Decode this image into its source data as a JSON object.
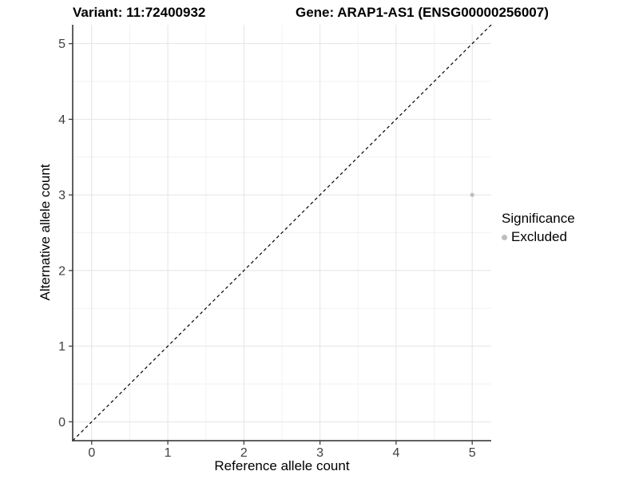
{
  "header": {
    "variant_title": "Variant: 11:72400932",
    "gene_title": "Gene: ARAP1-AS1 (ENSG00000256007)"
  },
  "chart_data": {
    "type": "scatter",
    "title": "",
    "xlabel": "Reference allele count",
    "ylabel": "Alternative allele count",
    "xlim": [
      -0.25,
      5.25
    ],
    "ylim": [
      -0.25,
      5.25
    ],
    "xticks": [
      0,
      1,
      2,
      3,
      4,
      5
    ],
    "yticks": [
      0,
      1,
      2,
      3,
      4,
      5
    ],
    "grid": true,
    "minor_grid": true,
    "identity_line": {
      "style": "dashed",
      "from": [
        -0.25,
        -0.25
      ],
      "to": [
        5.25,
        5.25
      ]
    },
    "series": [
      {
        "name": "Excluded",
        "marker_radius": 2.6,
        "points": [
          {
            "x": 5,
            "y": 3
          }
        ]
      }
    ],
    "legend": {
      "position": "right",
      "title": "Significance",
      "items": [
        {
          "label": "Excluded",
          "marker": "dot"
        }
      ]
    }
  },
  "colors": {
    "background": "#ffffff",
    "grid_major": "#e4e4e4",
    "grid_minor": "#f2f2f2",
    "axis_line": "#2b2b2b",
    "tick_mark": "#333333",
    "tick_label": "#404040",
    "title": "#000000",
    "point": "#bebebe",
    "identity_line": "#000000"
  }
}
